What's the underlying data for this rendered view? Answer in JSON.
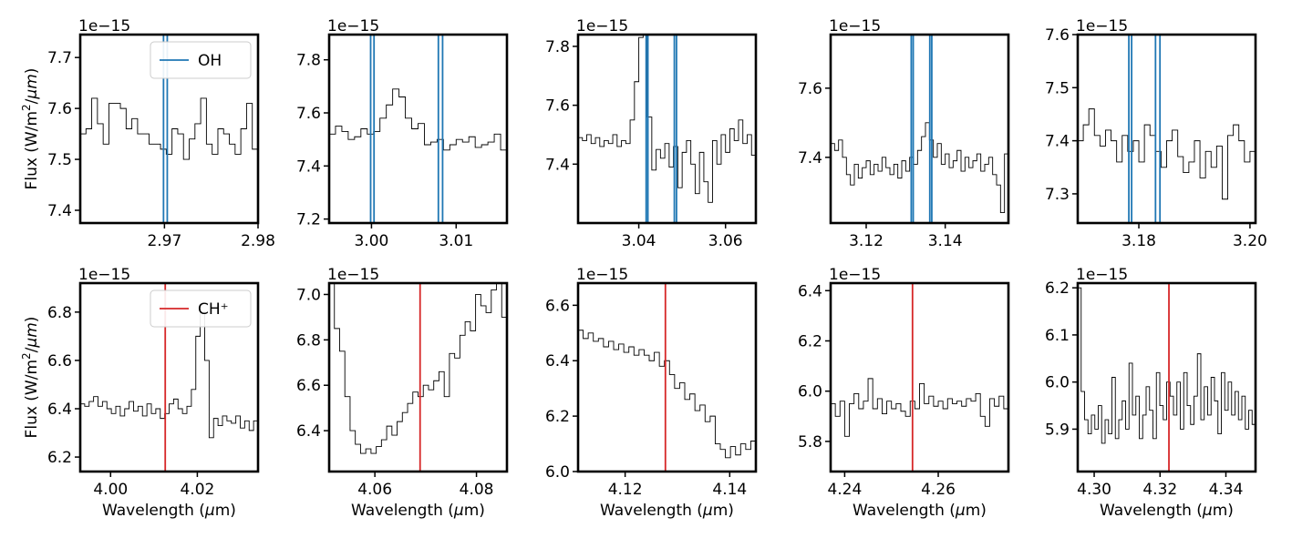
{
  "figure": {
    "ylabel": "Flux (W/m$^2$/$\\mu m$)",
    "xlabel": "Wavelength ($\\mu$m)",
    "offset_text": "1e−15",
    "colors": {
      "OH": "#1f77b4",
      "CH+": "#d62728",
      "spectrum": "#000000"
    }
  },
  "legends": [
    {
      "label": "OH",
      "color": "#1f77b4",
      "panel": 0,
      "placement": "upper-right"
    },
    {
      "label": "CH⁺",
      "color": "#d62728",
      "panel": 5,
      "placement": "upper-right"
    }
  ],
  "chart_data": [
    {
      "type": "line",
      "species": "OH",
      "row": 0,
      "col": 0,
      "xlim": [
        2.961,
        2.98
      ],
      "ylim": [
        7.375,
        7.745
      ],
      "xticks": [
        2.97,
        2.98
      ],
      "xtick_labels": [
        "2.97",
        "2.98"
      ],
      "yticks": [
        7.4,
        7.5,
        7.6,
        7.7
      ],
      "ytick_labels": [
        "7.4",
        "7.5",
        "7.6",
        "7.7"
      ],
      "lines": [
        2.9699,
        2.9703
      ],
      "spectrum": [
        7.55,
        7.56,
        7.62,
        7.57,
        7.53,
        7.61,
        7.61,
        7.6,
        7.56,
        7.58,
        7.55,
        7.55,
        7.53,
        7.53,
        7.52,
        7.51,
        7.56,
        7.55,
        7.5,
        7.54,
        7.57,
        7.62,
        7.53,
        7.51,
        7.56,
        7.55,
        7.53,
        7.51,
        7.56,
        7.61,
        7.52
      ]
    },
    {
      "type": "line",
      "species": "OH",
      "row": 0,
      "col": 1,
      "xlim": [
        2.995,
        3.016
      ],
      "ylim": [
        7.185,
        7.895
      ],
      "xticks": [
        3.0,
        3.01
      ],
      "xtick_labels": [
        "3.00",
        "3.01"
      ],
      "yticks": [
        7.2,
        7.4,
        7.6,
        7.8
      ],
      "ytick_labels": [
        "7.2",
        "7.4",
        "7.6",
        "7.8"
      ],
      "lines": [
        2.9999,
        3.0003,
        3.0079,
        3.0084
      ],
      "spectrum": [
        7.52,
        7.55,
        7.53,
        7.5,
        7.51,
        7.54,
        7.52,
        7.53,
        7.58,
        7.63,
        7.69,
        7.66,
        7.58,
        7.54,
        7.56,
        7.48,
        7.49,
        7.5,
        7.46,
        7.48,
        7.5,
        7.49,
        7.51,
        7.47,
        7.48,
        7.49,
        7.52,
        7.46
      ]
    },
    {
      "type": "line",
      "species": "OH",
      "row": 0,
      "col": 2,
      "xlim": [
        3.026,
        3.067
      ],
      "ylim": [
        7.2,
        7.84
      ],
      "xticks": [
        3.04,
        3.06
      ],
      "xtick_labels": [
        "3.04",
        "3.06"
      ],
      "yticks": [
        7.4,
        7.6,
        7.8
      ],
      "ytick_labels": [
        "7.4",
        "7.6",
        "7.8"
      ],
      "lines": [
        3.0417,
        3.0421,
        3.0482,
        3.0487
      ],
      "spectrum": [
        7.49,
        7.48,
        7.5,
        7.47,
        7.49,
        7.46,
        7.48,
        7.47,
        7.5,
        7.46,
        7.48,
        7.47,
        7.55,
        7.68,
        7.83,
        7.84,
        7.56,
        7.38,
        7.45,
        7.42,
        7.47,
        7.39,
        7.46,
        7.32,
        7.44,
        7.48,
        7.4,
        7.3,
        7.44,
        7.34,
        7.27,
        7.48,
        7.4,
        7.5,
        7.44,
        7.52,
        7.48,
        7.55,
        7.47,
        7.5,
        7.43
      ]
    },
    {
      "type": "line",
      "species": "OH",
      "row": 0,
      "col": 3,
      "xlim": [
        3.111,
        3.156
      ],
      "ylim": [
        7.21,
        7.755
      ],
      "xticks": [
        3.12,
        3.14
      ],
      "xtick_labels": [
        "3.12",
        "3.14"
      ],
      "yticks": [
        7.4,
        7.6
      ],
      "ytick_labels": [
        "7.4",
        "7.6"
      ],
      "lines": [
        3.1314,
        3.1319,
        3.1361,
        3.1366
      ],
      "spectrum": [
        7.44,
        7.42,
        7.45,
        7.4,
        7.35,
        7.32,
        7.38,
        7.34,
        7.37,
        7.39,
        7.35,
        7.38,
        7.36,
        7.4,
        7.37,
        7.35,
        7.38,
        7.34,
        7.39,
        7.36,
        7.4,
        7.38,
        7.42,
        7.46,
        7.5,
        7.45,
        7.4,
        7.44,
        7.38,
        7.41,
        7.37,
        7.39,
        7.42,
        7.36,
        7.4,
        7.37,
        7.39,
        7.41,
        7.36,
        7.38,
        7.4,
        7.35,
        7.32,
        7.24,
        7.41
      ]
    },
    {
      "type": "line",
      "species": "OH",
      "row": 0,
      "col": 4,
      "xlim": [
        3.169,
        3.201
      ],
      "ylim": [
        7.245,
        7.6
      ],
      "xticks": [
        3.18,
        3.2
      ],
      "xtick_labels": [
        "3.18",
        "3.20"
      ],
      "yticks": [
        7.3,
        7.4,
        7.5,
        7.6
      ],
      "ytick_labels": [
        "7.3",
        "7.4",
        "7.5",
        "7.6"
      ],
      "lines": [
        3.1782,
        3.1787,
        3.183,
        3.1838
      ],
      "spectrum": [
        7.4,
        7.43,
        7.46,
        7.41,
        7.39,
        7.42,
        7.4,
        7.36,
        7.41,
        7.38,
        7.4,
        7.36,
        7.43,
        7.41,
        7.38,
        7.35,
        7.4,
        7.42,
        7.37,
        7.34,
        7.36,
        7.4,
        7.33,
        7.38,
        7.35,
        7.39,
        7.29,
        7.41,
        7.43,
        7.4,
        7.36,
        7.38
      ]
    },
    {
      "type": "line",
      "species": "CH+",
      "row": 1,
      "col": 0,
      "xlim": [
        3.993,
        4.034
      ],
      "ylim": [
        6.14,
        6.92
      ],
      "xticks": [
        4.0,
        4.02
      ],
      "xtick_labels": [
        "4.00",
        "4.02"
      ],
      "yticks": [
        6.2,
        6.4,
        6.6,
        6.8
      ],
      "ytick_labels": [
        "6.2",
        "6.4",
        "6.6",
        "6.8"
      ],
      "lines": [
        4.0126
      ],
      "spectrum": [
        6.42,
        6.41,
        6.43,
        6.45,
        6.41,
        6.43,
        6.4,
        6.38,
        6.41,
        6.37,
        6.4,
        6.43,
        6.39,
        6.41,
        6.37,
        6.42,
        6.38,
        6.4,
        6.36,
        6.38,
        6.42,
        6.44,
        6.4,
        6.38,
        6.41,
        6.48,
        6.7,
        6.8,
        6.6,
        6.28,
        6.36,
        6.33,
        6.37,
        6.35,
        6.34,
        6.37,
        6.32,
        6.35,
        6.31,
        6.35
      ]
    },
    {
      "type": "line",
      "species": "CH+",
      "row": 1,
      "col": 1,
      "xlim": [
        4.051,
        4.086
      ],
      "ylim": [
        6.22,
        7.05
      ],
      "xticks": [
        4.06,
        4.08
      ],
      "xtick_labels": [
        "4.06",
        "4.08"
      ],
      "yticks": [
        6.4,
        6.6,
        6.8,
        7.0
      ],
      "ytick_labels": [
        "6.4",
        "6.6",
        "6.8",
        "7.0"
      ],
      "lines": [
        4.0689
      ],
      "spectrum": [
        7.05,
        6.85,
        6.75,
        6.55,
        6.4,
        6.34,
        6.3,
        6.32,
        6.3,
        6.33,
        6.36,
        6.42,
        6.38,
        6.44,
        6.48,
        6.52,
        6.57,
        6.55,
        6.6,
        6.58,
        6.62,
        6.66,
        6.55,
        6.74,
        6.72,
        6.82,
        6.88,
        6.84,
        7.0,
        6.95,
        6.92,
        7.02,
        7.05,
        6.9
      ]
    },
    {
      "type": "line",
      "species": "CH+",
      "row": 1,
      "col": 2,
      "xlim": [
        4.111,
        4.145
      ],
      "ylim": [
        6.0,
        6.68
      ],
      "xticks": [
        4.12,
        4.14
      ],
      "xtick_labels": [
        "4.12",
        "4.14"
      ],
      "yticks": [
        6.0,
        6.2,
        6.4,
        6.6
      ],
      "ytick_labels": [
        "6.0",
        "6.2",
        "6.4",
        "6.6"
      ],
      "lines": [
        4.1277
      ],
      "spectrum": [
        6.51,
        6.48,
        6.5,
        6.47,
        6.48,
        6.45,
        6.47,
        6.44,
        6.46,
        6.43,
        6.45,
        6.42,
        6.44,
        6.42,
        6.4,
        6.43,
        6.38,
        6.4,
        6.35,
        6.3,
        6.32,
        6.26,
        6.28,
        6.22,
        6.24,
        6.18,
        6.2,
        6.1,
        6.08,
        6.05,
        6.09,
        6.06,
        6.1,
        6.08,
        6.11
      ]
    },
    {
      "type": "line",
      "species": "CH+",
      "row": 1,
      "col": 3,
      "xlim": [
        4.237,
        4.275
      ],
      "ylim": [
        5.68,
        6.43
      ],
      "xticks": [
        4.24,
        4.26
      ],
      "xtick_labels": [
        "4.24",
        "4.26"
      ],
      "yticks": [
        5.8,
        6.0,
        6.2,
        6.4
      ],
      "ytick_labels": [
        "5.8",
        "6.0",
        "6.2",
        "6.4"
      ],
      "lines": [
        4.2545
      ],
      "spectrum": [
        5.95,
        5.9,
        5.96,
        5.82,
        5.95,
        5.99,
        5.93,
        5.96,
        6.05,
        5.93,
        5.97,
        5.91,
        5.96,
        5.93,
        5.95,
        5.92,
        5.9,
        5.96,
        5.93,
        6.03,
        5.95,
        5.98,
        5.94,
        5.96,
        5.93,
        5.97,
        5.95,
        5.96,
        5.94,
        5.97,
        5.96,
        5.99,
        5.9,
        5.86,
        5.97,
        5.94,
        5.98,
        5.93
      ]
    },
    {
      "type": "line",
      "species": "CH+",
      "row": 1,
      "col": 4,
      "xlim": [
        4.295,
        4.349
      ],
      "ylim": [
        5.81,
        6.21
      ],
      "xticks": [
        4.3,
        4.32,
        4.34
      ],
      "xtick_labels": [
        "4.30",
        "4.32",
        "4.34"
      ],
      "yticks": [
        5.9,
        6.0,
        6.1,
        6.2
      ],
      "ytick_labels": [
        "5.9",
        "6.0",
        "6.1",
        "6.2"
      ],
      "lines": [
        4.3227
      ],
      "spectrum": [
        6.2,
        5.98,
        5.92,
        5.89,
        5.93,
        5.9,
        5.95,
        5.87,
        5.92,
        5.89,
        6.01,
        5.88,
        5.92,
        5.96,
        5.9,
        6.04,
        5.93,
        5.97,
        5.88,
        5.93,
        5.99,
        5.94,
        5.88,
        6.02,
        5.95,
        5.92,
        6.0,
        5.97,
        5.93,
        6.0,
        5.9,
        6.02,
        5.95,
        5.91,
        5.97,
        6.06,
        5.92,
        5.99,
        5.93,
        6.01,
        5.96,
        5.89,
        6.02,
        5.94,
        6.0,
        5.93,
        5.98,
        5.92,
        5.97,
        5.9,
        5.94,
        5.91
      ]
    }
  ]
}
